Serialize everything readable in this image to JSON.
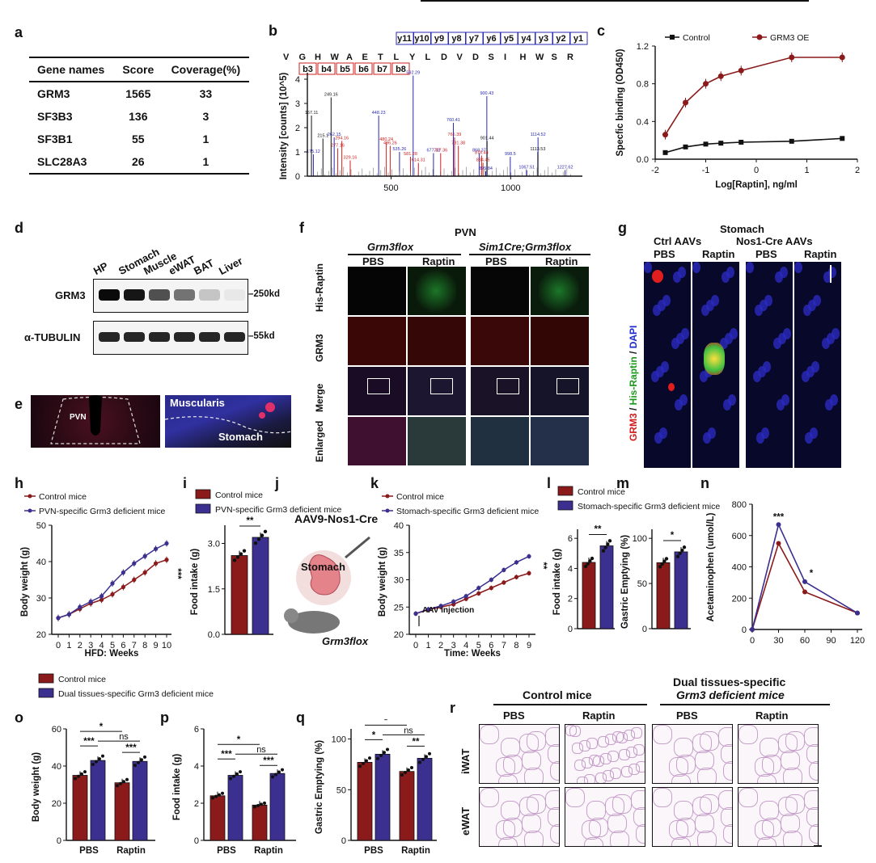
{
  "labels": {
    "a": "a",
    "b": "b",
    "c": "c",
    "d": "d",
    "e": "e",
    "f": "f",
    "g": "g",
    "h": "h",
    "i": "i",
    "j": "j",
    "k": "k",
    "l": "l",
    "m": "m",
    "n": "n",
    "o": "o",
    "p": "p",
    "q": "q",
    "r": "r"
  },
  "table_a": {
    "headers": [
      "Gene names",
      "Score",
      "Coverage(%)"
    ],
    "rows": [
      [
        "GRM3",
        "1565",
        "33"
      ],
      [
        "SF3B3",
        "136",
        "3"
      ],
      [
        "SF3B1",
        "55",
        "1"
      ],
      [
        "SLC28A3",
        "26",
        "1"
      ]
    ]
  },
  "panel_b": {
    "sequence": [
      "V",
      "G",
      "H",
      "W",
      "A",
      "E",
      "T",
      "L",
      "Y",
      "L",
      "D",
      "V",
      "D",
      "S",
      "I",
      "H",
      "W",
      "S",
      "R"
    ],
    "y_ions": [
      "y11",
      "y10",
      "y9",
      "y8",
      "y7",
      "y6",
      "y5",
      "y4",
      "y3",
      "y2",
      "y1"
    ],
    "b_ions": [
      "b3",
      "b4",
      "b5",
      "b6",
      "b7",
      "b8"
    ],
    "ylabel": "Intensity [counts] (10^5)",
    "yticks": [
      "0",
      "1",
      "2",
      "3",
      "4"
    ],
    "xticks": [
      "500",
      "1000"
    ],
    "peak_labels": [
      "249.16",
      "167.11",
      "215.1",
      "262.15",
      "294.16",
      "175.12",
      "277.16",
      "329.16",
      "592.29",
      "448.23",
      "535.26",
      "480.24",
      "496.26",
      "581.28",
      "677.33",
      "614.31",
      "765.39",
      "707.36",
      "781.38",
      "760.41",
      "900.43",
      "901.44",
      "1114.52",
      "1113.53",
      "868.37",
      "878.44",
      "884.45",
      "895.84",
      "998.5",
      "1067.51",
      "1227.62"
    ]
  },
  "panel_c": {
    "legend": [
      "Control",
      "GRM3 OE"
    ],
    "ylabel": "Specfic binding (OD450)",
    "xlabel": "Log[Raptin], ng/ml",
    "yticks": [
      "0.0",
      "0.4",
      "0.8",
      "1.2"
    ],
    "xticks": [
      "-2",
      "-1",
      "0",
      "1",
      "2"
    ]
  },
  "panel_d": {
    "lanes": [
      "HP",
      "Stomach",
      "Muscle",
      "eWAT",
      "BAT",
      "Liver"
    ],
    "rows": [
      "GRM3",
      "α-TUBULIN"
    ],
    "sizes": [
      "250kd",
      "55kd"
    ]
  },
  "panel_e": {
    "labels": [
      "PVN",
      "Muscularis",
      "Stomach"
    ]
  },
  "panel_f": {
    "title": "PVN",
    "groups": [
      "Grm3flox",
      "Sim1Cre;Grm3flox"
    ],
    "conditions": [
      "PBS",
      "Raptin",
      "PBS",
      "Raptin"
    ],
    "rows": [
      "His-Raptin",
      "GRM3",
      "Merge",
      "Enlarged"
    ]
  },
  "panel_g": {
    "title": "Stomach",
    "groups": [
      "Ctrl AAVs",
      "Nos1-Cre AAVs"
    ],
    "conditions": [
      "PBS",
      "Raptin",
      "PBS",
      "Raptin"
    ],
    "side_label": [
      "GRM3",
      " / ",
      "His-Raptin",
      " / ",
      "DAPI"
    ]
  },
  "panel_h": {
    "legend": [
      "Control mice",
      "PVN-specific Grm3 deficient mice"
    ],
    "ylabel": "Body weight (g)",
    "xlabel": "HFD: Weeks",
    "yticks": [
      "20",
      "30",
      "40",
      "50"
    ],
    "xticks": [
      "0",
      "1",
      "2",
      "3",
      "4",
      "5",
      "6",
      "7",
      "8",
      "9",
      "10"
    ],
    "sig": "***"
  },
  "panel_i": {
    "legend": [
      "Control mice",
      "PVN-specific Grm3 deficient mice"
    ],
    "ylabel": "Food intake (g)",
    "yticks": [
      "0.0",
      "1.5",
      "3.0"
    ],
    "sig": "**"
  },
  "panel_j": {
    "title": "AAV9-Nos1-Cre",
    "organ": "Stomach",
    "mouse": "Grm3flox"
  },
  "panel_k": {
    "legend": [
      "Control mice",
      "Stomach-specific Grm3 deficient mice"
    ],
    "ylabel": "Body weight (g)",
    "xlabel": "Time: Weeks",
    "yticks": [
      "20",
      "25",
      "30",
      "35",
      "40"
    ],
    "xticks": [
      "0",
      "1",
      "2",
      "3",
      "4",
      "5",
      "6",
      "7",
      "8",
      "9"
    ],
    "annotation": "AAV injection",
    "sig": "**"
  },
  "panel_l": {
    "legend": [
      "Control mice",
      "Stomach-specific Grm3 deficient mice"
    ],
    "ylabel": "Food intake (g)",
    "yticks": [
      "0",
      "2",
      "4",
      "6"
    ],
    "sig": "**"
  },
  "panel_m": {
    "ylabel": "Gastric Emptying (%)",
    "yticks": [
      "0",
      "50",
      "100"
    ],
    "sig": "*"
  },
  "panel_n": {
    "ylabel": "Acetaminophen (umol/L)",
    "yticks": [
      "0",
      "200",
      "400",
      "600",
      "800"
    ],
    "xticks": [
      "0",
      "30",
      "60",
      "90",
      "120"
    ],
    "sig": [
      "***",
      "*"
    ]
  },
  "legend_opq": [
    "Control mice",
    "Dual tissues-specific Grm3 deficient mice"
  ],
  "panel_o": {
    "ylabel": "Body weight (g)",
    "yticks": [
      "0",
      "20",
      "40",
      "60"
    ],
    "xticks": [
      "PBS",
      "Raptin"
    ],
    "sig": [
      "*",
      "***",
      "ns",
      "***"
    ]
  },
  "panel_p": {
    "ylabel": "Food intake (g)",
    "yticks": [
      "0",
      "2",
      "4",
      "6"
    ],
    "xticks": [
      "PBS",
      "Raptin"
    ],
    "sig": [
      "*",
      "***",
      "ns",
      "***"
    ]
  },
  "panel_q": {
    "ylabel": "Gastric Emptying (%)",
    "yticks": [
      "0",
      "50",
      "100"
    ],
    "xticks": [
      "PBS",
      "Raptin"
    ],
    "sig": [
      "*",
      "*",
      "ns",
      "**"
    ]
  },
  "panel_r": {
    "groups": [
      "Control mice",
      "Dual tissues-specific",
      "Grm3 deficient mice"
    ],
    "conditions": [
      "PBS",
      "Raptin",
      "PBS",
      "Raptin"
    ],
    "rows": [
      "iWAT",
      "eWAT"
    ]
  },
  "chart_data": [
    {
      "panel": "c",
      "type": "line",
      "x": [
        -1.8,
        -1.4,
        -1,
        -0.7,
        -0.3,
        0.7,
        1.7
      ],
      "series": [
        {
          "name": "Control",
          "values": [
            0.07,
            0.13,
            0.16,
            0.17,
            0.18,
            0.19,
            0.22
          ]
        },
        {
          "name": "GRM3 OE",
          "values": [
            0.26,
            0.6,
            0.8,
            0.88,
            0.94,
            1.08,
            1.08
          ]
        }
      ],
      "ylim": [
        0,
        1.2
      ],
      "xlim": [
        -2,
        2
      ]
    },
    {
      "panel": "h",
      "type": "line",
      "x": [
        0,
        1,
        2,
        3,
        4,
        5,
        6,
        7,
        8,
        9,
        10
      ],
      "series": [
        {
          "name": "Control mice",
          "values": [
            24.5,
            25.5,
            27,
            28.5,
            29.5,
            31,
            33,
            35,
            37,
            39.5,
            40.5
          ]
        },
        {
          "name": "PVN-specific Grm3 deficient mice",
          "values": [
            24.5,
            25.5,
            27.5,
            29,
            30.5,
            34,
            37,
            39.5,
            41.5,
            43.5,
            45
          ]
        }
      ],
      "ylim": [
        20,
        50
      ]
    },
    {
      "panel": "i",
      "type": "bar",
      "categories": [
        "Control mice",
        "PVN-specific Grm3 deficient mice"
      ],
      "values": [
        2.6,
        3.2
      ],
      "ylim": [
        0,
        3.6
      ]
    },
    {
      "panel": "k",
      "type": "line",
      "x": [
        0,
        1,
        2,
        3,
        4,
        5,
        6,
        7,
        8,
        9
      ],
      "series": [
        {
          "name": "Control mice",
          "values": [
            23.8,
            24.5,
            25,
            25.5,
            26.5,
            27.5,
            28.5,
            29.5,
            30.5,
            31.2
          ]
        },
        {
          "name": "Stomach-specific Grm3 deficient mice",
          "values": [
            23.8,
            24.6,
            25.2,
            26,
            27,
            28.5,
            30,
            31.8,
            33.2,
            34.3
          ]
        }
      ],
      "ylim": [
        20,
        40
      ]
    },
    {
      "panel": "l",
      "type": "bar",
      "categories": [
        "Control mice",
        "Stomach-specific Grm3 deficient mice"
      ],
      "values": [
        4.4,
        5.5
      ],
      "ylim": [
        0,
        6.6
      ]
    },
    {
      "panel": "m",
      "type": "bar",
      "categories": [
        "Control mice",
        "Stomach-specific Grm3 deficient mice"
      ],
      "values": [
        73,
        85
      ],
      "ylim": [
        0,
        110
      ]
    },
    {
      "panel": "n",
      "type": "line",
      "x": [
        0,
        30,
        60,
        120
      ],
      "series": [
        {
          "name": "Control mice",
          "values": [
            0,
            550,
            240,
            105
          ]
        },
        {
          "name": "Stomach-specific Grm3 deficient mice",
          "values": [
            0,
            670,
            305,
            105
          ]
        }
      ],
      "ylim": [
        0,
        800
      ]
    },
    {
      "panel": "o",
      "type": "bar",
      "categories": [
        "PBS",
        "Raptin"
      ],
      "series": [
        {
          "name": "Control mice",
          "values": [
            35,
            31
          ]
        },
        {
          "name": "Dual tissues-specific Grm3 deficient mice",
          "values": [
            43,
            42.5
          ]
        }
      ],
      "ylim": [
        0,
        60
      ]
    },
    {
      "panel": "p",
      "type": "bar",
      "categories": [
        "PBS",
        "Raptin"
      ],
      "series": [
        {
          "name": "Control mice",
          "values": [
            2.4,
            1.9
          ]
        },
        {
          "name": "Dual tissues-specific Grm3 deficient mice",
          "values": [
            3.5,
            3.6
          ]
        }
      ],
      "ylim": [
        0,
        6
      ]
    },
    {
      "panel": "q",
      "type": "bar",
      "categories": [
        "PBS",
        "Raptin"
      ],
      "series": [
        {
          "name": "Control mice",
          "values": [
            77,
            68
          ]
        },
        {
          "name": "Dual tissues-specific Grm3 deficient mice",
          "values": [
            85,
            81
          ]
        }
      ],
      "ylim": [
        0,
        110
      ]
    }
  ],
  "colors": {
    "control": "#8b1a1a",
    "ko": "#3b2f8f",
    "black": "#111111"
  }
}
